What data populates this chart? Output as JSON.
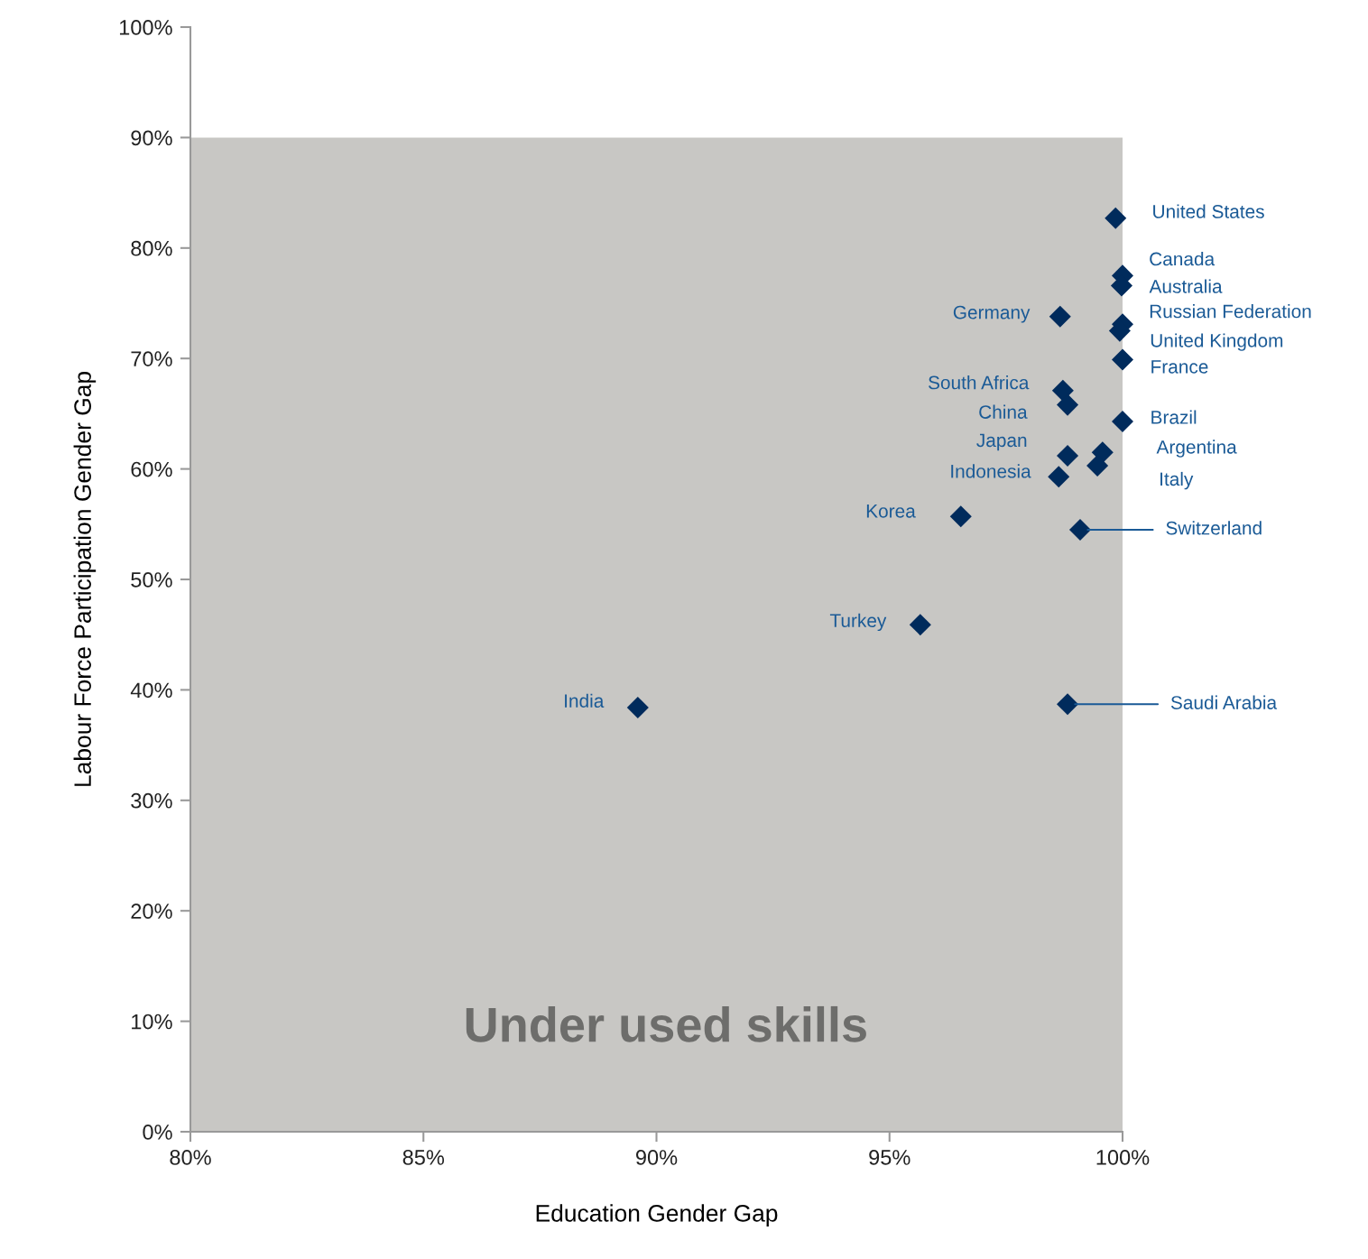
{
  "chart_data": {
    "type": "scatter",
    "xlabel": "Education Gender Gap",
    "ylabel": "Labour Force Participation Gender Gap",
    "x": [
      99.85,
      100,
      99.98,
      98.66,
      100,
      99.94,
      100,
      98.72,
      98.82,
      100,
      99.57,
      99.46,
      98.82,
      98.63,
      96.53,
      99.09,
      95.66,
      89.6,
      98.82
    ],
    "series": [
      {
        "color": "#002b5c",
        "values": [
          82.7,
          77.5,
          76.6,
          73.8,
          73.1,
          72.5,
          69.9,
          67.1,
          65.8,
          64.3,
          61.5,
          60.3,
          61.2,
          59.3,
          55.7,
          54.5,
          45.9,
          38.4,
          38.7
        ]
      }
    ],
    "marker": "diamond",
    "xlim": [
      80,
      100
    ],
    "ylim": [
      0,
      100
    ],
    "xticks": [
      {
        "value": 80,
        "label": "80%"
      },
      {
        "value": 85,
        "label": "85%"
      },
      {
        "value": 90,
        "label": "90%"
      },
      {
        "value": 95,
        "label": "95%"
      },
      {
        "value": 100,
        "label": "100%"
      }
    ],
    "yticks": [
      {
        "value": 0,
        "label": "0%"
      },
      {
        "value": 10,
        "label": "10%"
      },
      {
        "value": 20,
        "label": "20%"
      },
      {
        "value": 30,
        "label": "30%"
      },
      {
        "value": 40,
        "label": "40%"
      },
      {
        "value": 50,
        "label": "50%"
      },
      {
        "value": 60,
        "label": "60%"
      },
      {
        "value": 70,
        "label": "70%"
      },
      {
        "value": 80,
        "label": "80%"
      },
      {
        "value": 90,
        "label": "90%"
      },
      {
        "value": 100,
        "label": "100%"
      }
    ],
    "bands": [
      {
        "axis": "y",
        "from": 0,
        "to": 90,
        "label": "Under used skills",
        "color": "#c8c7c4"
      }
    ],
    "annotations": [
      {
        "text": "United States",
        "x": 99.85,
        "y": 82.7
      },
      {
        "text": "Canada",
        "x": 100,
        "y": 77.5
      },
      {
        "text": "Australia",
        "x": 99.98,
        "y": 76.6
      },
      {
        "text": "Germany",
        "x": 98.66,
        "y": 73.8
      },
      {
        "text": "Russian Federation",
        "x": 100,
        "y": 73.1
      },
      {
        "text": "United Kingdom",
        "x": 99.94,
        "y": 72.5
      },
      {
        "text": "France",
        "x": 100,
        "y": 69.9
      },
      {
        "text": "South Africa",
        "x": 98.72,
        "y": 67.1
      },
      {
        "text": "China",
        "x": 98.82,
        "y": 65.8
      },
      {
        "text": "Brazil",
        "x": 100,
        "y": 64.3
      },
      "Argentina",
      "Italy",
      {
        "text": "Japan",
        "x": 98.82,
        "y": 61.2
      },
      {
        "text": "Indonesia",
        "x": 98.63,
        "y": 59.3
      },
      {
        "text": "Korea",
        "x": 96.53,
        "y": 55.7
      },
      {
        "text": "Switzerland",
        "x": 99.09,
        "y": 54.5
      },
      {
        "text": "Turkey",
        "x": 95.66,
        "y": 45.9
      },
      {
        "text": "India",
        "x": 89.6,
        "y": 38.4
      },
      {
        "text": "Saudi Arabia",
        "x": 98.82,
        "y": 38.7
      }
    ]
  }
}
